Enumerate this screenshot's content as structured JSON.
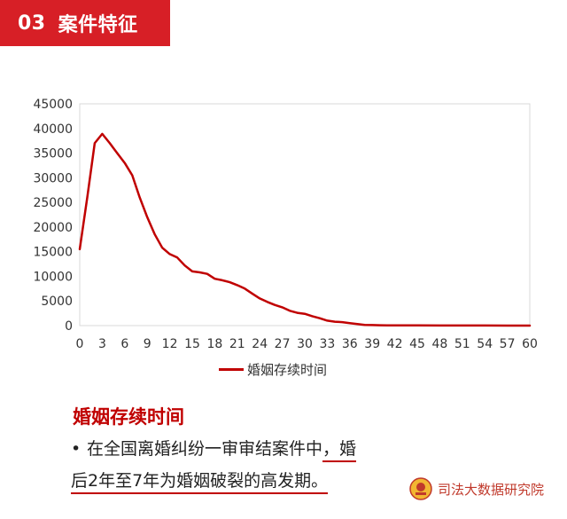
{
  "header": {
    "number": "03",
    "title": "案件特征"
  },
  "section_title": "婚姻存续时间",
  "bullet": {
    "marker": "•",
    "line1_a": "在全国离婚纠纷一审审结案件中",
    "line1_b": "，婚",
    "line2": "后2年至7年为婚姻破裂的高发期。"
  },
  "brand": {
    "name": "司法大数据研究院",
    "emblem_icon": "court-emblem-icon"
  },
  "colors": {
    "accent": "#d71f26",
    "line": "#c00000"
  },
  "chart_data": {
    "type": "line",
    "title": "",
    "xlabel": "",
    "ylabel": "",
    "xlim": [
      0,
      60
    ],
    "ylim": [
      0,
      45000
    ],
    "x_ticks": [
      0,
      3,
      6,
      9,
      12,
      15,
      18,
      21,
      24,
      27,
      30,
      33,
      36,
      39,
      42,
      45,
      48,
      51,
      54,
      57,
      60
    ],
    "y_ticks": [
      0,
      5000,
      10000,
      15000,
      20000,
      25000,
      30000,
      35000,
      40000,
      45000
    ],
    "grid": false,
    "legend": "bottom",
    "series": [
      {
        "name": "婚姻存续时间",
        "x": [
          0,
          1,
          2,
          3,
          4,
          5,
          6,
          7,
          8,
          9,
          10,
          11,
          12,
          13,
          14,
          15,
          16,
          17,
          18,
          19,
          20,
          21,
          22,
          23,
          24,
          25,
          26,
          27,
          28,
          29,
          30,
          31,
          32,
          33,
          34,
          35,
          36,
          37,
          38,
          39,
          40,
          41,
          42,
          45,
          48,
          51,
          54,
          57,
          60
        ],
        "values": [
          15500,
          26000,
          37000,
          38900,
          37000,
          35000,
          33000,
          30500,
          26000,
          22000,
          18500,
          15800,
          14500,
          13800,
          12200,
          11000,
          10800,
          10500,
          9500,
          9200,
          8800,
          8200,
          7500,
          6500,
          5500,
          4800,
          4200,
          3700,
          3000,
          2600,
          2400,
          1900,
          1500,
          1000,
          800,
          700,
          500,
          300,
          150,
          100,
          80,
          60,
          50,
          30,
          20,
          10,
          10,
          5,
          0
        ]
      }
    ]
  }
}
